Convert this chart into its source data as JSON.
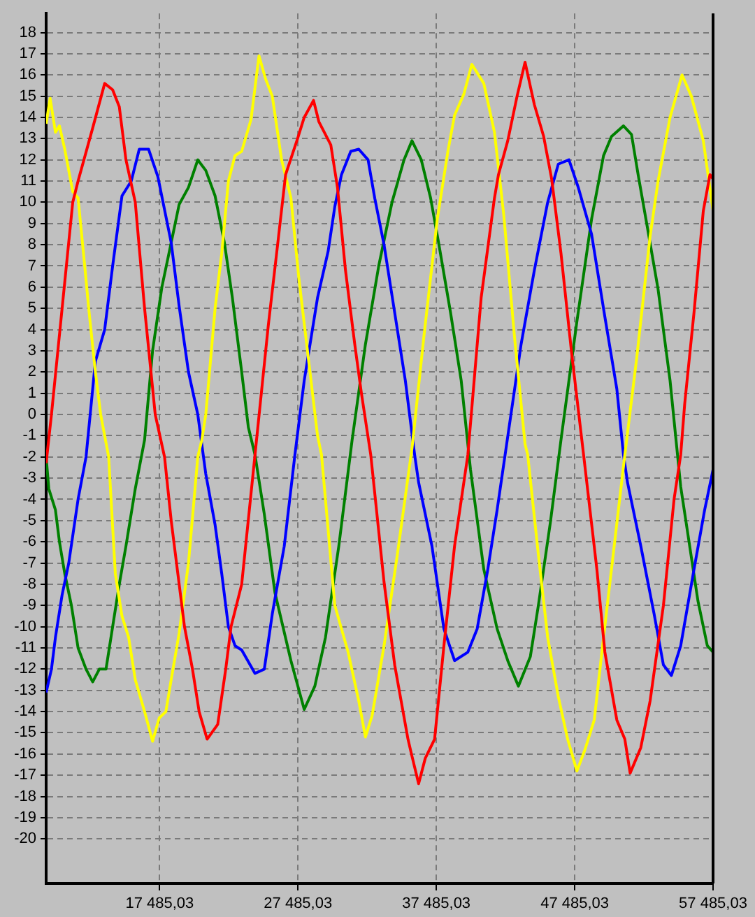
{
  "chart_data": {
    "type": "line",
    "xlim": [
      9283,
      57485.03
    ],
    "ylim": [
      -22.1,
      18.9
    ],
    "xticks": [
      {
        "value": 17485.03,
        "label": "17 485,03"
      },
      {
        "value": 27485.03,
        "label": "27 485,03"
      },
      {
        "value": 37485.03,
        "label": "37 485,03"
      },
      {
        "value": 47485.03,
        "label": "47 485,03"
      },
      {
        "value": 57485.03,
        "label": "57 485,03"
      }
    ],
    "yticks": [
      -20,
      -19,
      -18,
      -17,
      -16,
      -15,
      -14,
      -13,
      -12,
      -11,
      -10,
      -9,
      -8,
      -7,
      -6,
      -5,
      -4,
      -3,
      -2,
      -1,
      0,
      1,
      2,
      3,
      4,
      5,
      6,
      7,
      8,
      9,
      10,
      11,
      12,
      13,
      14,
      15,
      16,
      17,
      18
    ],
    "grid": true,
    "marker": "none",
    "series": [
      {
        "color": "#ff0000",
        "x": [
          9283,
          9668,
          10437,
          11206,
          11591,
          12648,
          13514,
          14090,
          14571,
          15052,
          15725,
          16398,
          17167,
          17840,
          18321,
          18898,
          19283,
          19860,
          20340,
          20917,
          21686,
          22263,
          22648,
          23417,
          24379,
          25340,
          26013,
          26590,
          27455,
          27936,
          28609,
          28994,
          29859,
          30340,
          30917,
          31590,
          32071,
          32744,
          33705,
          34474,
          35436,
          35724,
          36205,
          36686,
          37359,
          38032,
          38801,
          39763,
          40724,
          41686,
          41974,
          42647,
          43320,
          43897,
          44570,
          45243,
          45820,
          46493,
          47262,
          48128,
          49089,
          49666,
          50531,
          51108,
          51493,
          52262,
          52935,
          53897,
          54666,
          55147,
          55435,
          56108,
          56781,
          57262,
          57485.03
        ],
        "values": [
          -2.3,
          0,
          5,
          10,
          11,
          13.5,
          15.6,
          15.3,
          14.5,
          12,
          10,
          5,
          0,
          -2,
          -5,
          -8,
          -10,
          -12,
          -14,
          -15.3,
          -14.6,
          -12,
          -10,
          -8,
          -1.9,
          4.2,
          8,
          11.3,
          13,
          14,
          14.8,
          13.8,
          12.7,
          10.7,
          6.8,
          3.3,
          1,
          -1.9,
          -7.9,
          -11.8,
          -15.3,
          -16.1,
          -17.4,
          -16.2,
          -15.3,
          -10.9,
          -6.2,
          -1.9,
          5.5,
          10.2,
          11.3,
          12.9,
          15,
          16.6,
          14.6,
          13.1,
          11.1,
          7.6,
          2.9,
          -1.9,
          -7.3,
          -11.2,
          -14.4,
          -15.3,
          -16.9,
          -15.7,
          -13.5,
          -9,
          -4,
          -1.9,
          0.5,
          4.8,
          9.6,
          11.3,
          11.1
        ]
      },
      {
        "color": "#ffff00",
        "x": [
          9283,
          9571,
          9956,
          10244,
          10629,
          11206,
          11591,
          12071,
          12360,
          12841,
          13225,
          13802,
          14283,
          14764,
          15244,
          15725,
          16398,
          16975,
          17456,
          17936,
          18321,
          18898,
          19571,
          20244,
          20533,
          20821,
          21494,
          21975,
          22456,
          22936,
          23417,
          24090,
          24667,
          25148,
          25628,
          26302,
          26975,
          27552,
          28225,
          28898,
          29186,
          30148,
          31109,
          31878,
          32359,
          32840,
          33705,
          34667,
          35724,
          36590,
          37551,
          38320,
          38801,
          39474,
          40051,
          40916,
          41686,
          42359,
          43128,
          43897,
          44089,
          44859,
          45532,
          46301,
          46974,
          47647,
          48224,
          48897,
          49570,
          50339,
          51108,
          51974,
          52935,
          53512,
          54377,
          55243,
          55916,
          56781,
          57485.03
        ],
        "values": [
          13.7,
          14.9,
          13.3,
          13.6,
          12.5,
          10.5,
          10.2,
          7,
          5,
          2,
          0,
          -2,
          -7.5,
          -9.5,
          -10.5,
          -12.5,
          -14,
          -15.4,
          -14.3,
          -14,
          -12.5,
          -10.3,
          -7,
          -2,
          -1.2,
          0,
          5,
          7.6,
          11,
          12.2,
          12.4,
          13.9,
          16.9,
          15.8,
          15,
          12,
          10.2,
          6.4,
          2.7,
          -1,
          -1.9,
          -9,
          -11.2,
          -13.5,
          -15.2,
          -14.2,
          -10.9,
          -6.6,
          -1.6,
          3.7,
          9.2,
          12.4,
          14.1,
          15.1,
          16.5,
          15.6,
          13.3,
          9.4,
          3.7,
          -1.4,
          -1.9,
          -6.6,
          -10.5,
          -13.3,
          -15.3,
          -16.8,
          -15.8,
          -14.4,
          -10.5,
          -6.2,
          -1.9,
          2.7,
          8.4,
          11,
          14,
          16,
          15,
          12.9,
          9.6
        ]
      },
      {
        "color": "#0000ff",
        "x": [
          9283,
          9668,
          9956,
          10437,
          10918,
          11591,
          12167,
          12841,
          13514,
          14090,
          14764,
          15437,
          16013,
          16687,
          17360,
          18321,
          18898,
          19571,
          20244,
          20821,
          21494,
          21975,
          22456,
          22936,
          23417,
          24379,
          25052,
          25628,
          26494,
          27263,
          27936,
          28898,
          29667,
          30148,
          30628,
          31301,
          31878,
          32551,
          33032,
          33705,
          34474,
          35244,
          35917,
          36205,
          37167,
          38032,
          38801,
          39763,
          40436,
          41205,
          41878,
          42455,
          43609,
          44570,
          45532,
          46301,
          47070,
          47743,
          48704,
          49666,
          50531,
          51012,
          51301,
          52262,
          53224,
          53897,
          54474,
          55147,
          56108,
          56877,
          57485.03
        ],
        "values": [
          -13.1,
          -12,
          -10.5,
          -8.5,
          -7,
          -4,
          -2,
          2.5,
          4,
          7,
          10.3,
          11,
          12.5,
          12.5,
          11.2,
          8.1,
          5.1,
          2,
          0,
          -2.8,
          -5.2,
          -7.5,
          -10,
          -10.9,
          -11.1,
          -12.2,
          -12,
          -9.4,
          -6.2,
          -1.9,
          1.6,
          5.5,
          7.7,
          9.8,
          11.3,
          12.4,
          12.5,
          12,
          10.2,
          8,
          4.8,
          1.6,
          -1.9,
          -3.2,
          -6.2,
          -10.1,
          -11.6,
          -11.2,
          -10.1,
          -7.3,
          -4.5,
          -1.9,
          3.3,
          6.8,
          10,
          11.8,
          12,
          10.7,
          8.5,
          4.6,
          1.2,
          -1.9,
          -3.2,
          -6.2,
          -9.4,
          -11.8,
          -12.3,
          -10.9,
          -7.3,
          -4.5,
          -2.6
        ]
      },
      {
        "color": "#008000",
        "x": [
          9283,
          9475,
          9956,
          10244,
          10629,
          11110,
          11591,
          12167,
          12648,
          13129,
          13610,
          14090,
          14571,
          15052,
          15725,
          16398,
          16975,
          17648,
          18321,
          18898,
          19571,
          20244,
          20821,
          21494,
          22167,
          22744,
          23417,
          23898,
          24379,
          25052,
          25821,
          26975,
          27936,
          28705,
          29474,
          30436,
          31398,
          32359,
          33321,
          34282,
          35147,
          35724,
          36397,
          37070,
          37647,
          38513,
          39282,
          39955,
          40916,
          41878,
          42647,
          43416,
          44282,
          44859,
          45724,
          46493,
          47647,
          48704,
          49570,
          50147,
          51012,
          51589,
          52070,
          52743,
          53512,
          54377,
          55147,
          56397,
          57070,
          57485.03
        ],
        "values": [
          -2,
          -3.5,
          -4.5,
          -6,
          -7.5,
          -9,
          -11,
          -12,
          -12.6,
          -12,
          -12,
          -10,
          -8,
          -6.2,
          -3.5,
          -1.2,
          3,
          6,
          8.1,
          9.9,
          10.7,
          12,
          11.5,
          10.3,
          8.1,
          5.5,
          2,
          -0.6,
          -1.9,
          -4.7,
          -8.4,
          -11.6,
          -13.9,
          -12.8,
          -10.5,
          -6.2,
          -1.2,
          3.3,
          7,
          10,
          12,
          12.9,
          12,
          10.2,
          8.1,
          4.8,
          1.6,
          -2.6,
          -7.3,
          -10.1,
          -11.6,
          -12.8,
          -11.4,
          -9,
          -5.1,
          -1.2,
          4.4,
          9.2,
          12.2,
          13.1,
          13.6,
          13.2,
          11.3,
          8.8,
          5.9,
          1.6,
          -3.4,
          -8.8,
          -10.9,
          -11.2
        ]
      }
    ]
  }
}
